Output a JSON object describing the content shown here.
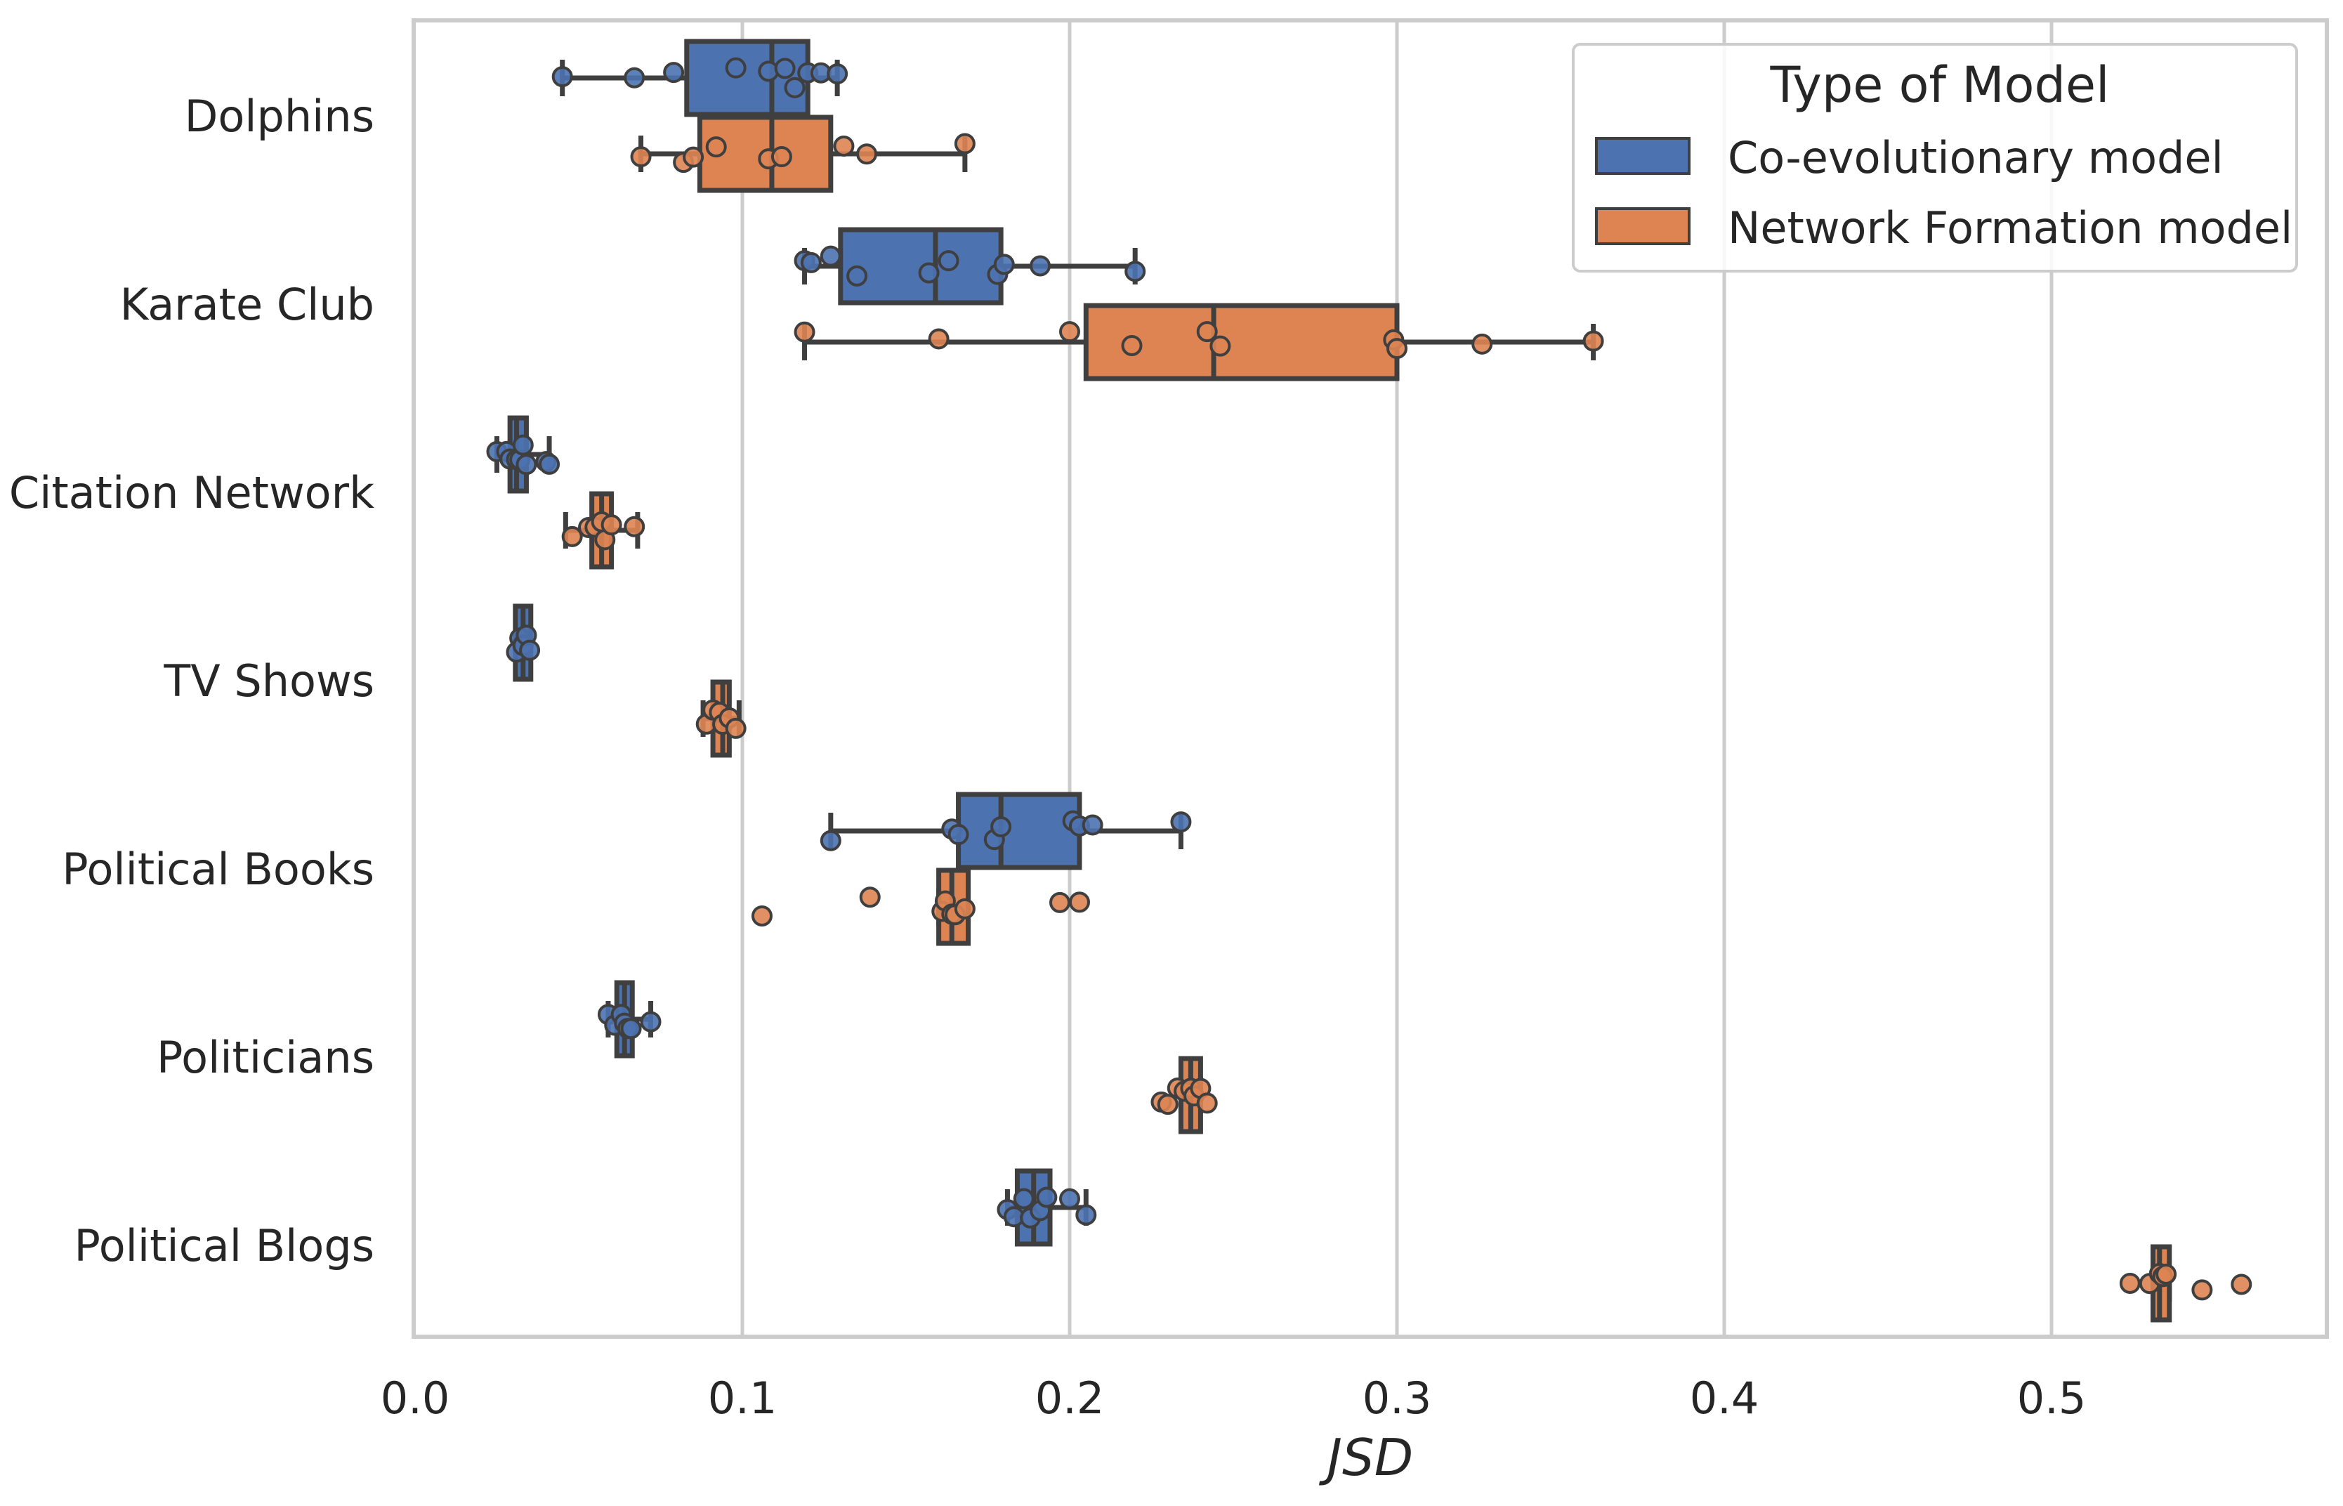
{
  "chart_data": {
    "type": "boxplot",
    "orientation": "horizontal",
    "title": "",
    "xlabel": "JSD",
    "ylabel": "",
    "xlim": [
      0.0,
      0.58
    ],
    "xticks": [
      0.0,
      0.1,
      0.2,
      0.3,
      0.4,
      0.5
    ],
    "xtick_labels": [
      "0.0",
      "0.1",
      "0.2",
      "0.3",
      "0.4",
      "0.5"
    ],
    "grid": "vertical",
    "categories": [
      "Dolphins",
      "Karate Club",
      "Citation Network",
      "TV Shows",
      "Political Books",
      "Politicians",
      "Political Blogs"
    ],
    "legend": {
      "title": "Type of Model",
      "placement": "top-right",
      "entries": [
        "Co-evolutionary model",
        "Network Formation model"
      ]
    },
    "series": [
      {
        "name": "Co-evolutionary model",
        "color": "#4c72b0",
        "boxes": [
          {
            "category": "Dolphins",
            "whislo": 0.045,
            "q1": 0.083,
            "med": 0.109,
            "q3": 0.12,
            "whishi": 0.129,
            "points": [
              0.045,
              0.067,
              0.079,
              0.098,
              0.108,
              0.113,
              0.116,
              0.12,
              0.124,
              0.129
            ]
          },
          {
            "category": "Karate Club",
            "whislo": 0.119,
            "q1": 0.13,
            "med": 0.159,
            "q3": 0.179,
            "whishi": 0.22,
            "points": [
              0.119,
              0.121,
              0.127,
              0.135,
              0.157,
              0.163,
              0.178,
              0.18,
              0.191,
              0.22
            ]
          },
          {
            "category": "Citation Network",
            "whislo": 0.025,
            "q1": 0.029,
            "med": 0.031,
            "q3": 0.034,
            "whishi": 0.041,
            "points": [
              0.025,
              0.028,
              0.029,
              0.031,
              0.032,
              0.033,
              0.034,
              0.04,
              0.041
            ]
          },
          {
            "category": "TV Shows",
            "whislo": 0.031,
            "q1": 0.032,
            "med": 0.033,
            "q3": 0.034,
            "whishi": 0.035,
            "points": [
              0.031,
              0.032,
              0.033,
              0.033,
              0.034,
              0.035
            ]
          },
          {
            "category": "Political Books",
            "whislo": 0.127,
            "q1": 0.166,
            "med": 0.179,
            "q3": 0.203,
            "whishi": 0.234,
            "points": [
              0.127,
              0.164,
              0.166,
              0.177,
              0.179,
              0.201,
              0.203,
              0.207,
              0.234
            ]
          },
          {
            "category": "Politicians",
            "whislo": 0.059,
            "q1": 0.062,
            "med": 0.064,
            "q3": 0.066,
            "whishi": 0.072,
            "points": [
              0.059,
              0.061,
              0.063,
              0.064,
              0.065,
              0.066,
              0.072
            ]
          },
          {
            "category": "Political Blogs",
            "whislo": 0.181,
            "q1": 0.184,
            "med": 0.189,
            "q3": 0.194,
            "whishi": 0.205,
            "points": [
              0.181,
              0.183,
              0.186,
              0.188,
              0.191,
              0.193,
              0.2,
              0.205
            ]
          }
        ]
      },
      {
        "name": "Network Formation model",
        "color": "#dd8452",
        "boxes": [
          {
            "category": "Dolphins",
            "whislo": 0.069,
            "q1": 0.087,
            "med": 0.109,
            "q3": 0.127,
            "whishi": 0.168,
            "points": [
              0.069,
              0.082,
              0.085,
              0.092,
              0.108,
              0.112,
              0.131,
              0.138,
              0.168
            ]
          },
          {
            "category": "Karate Club",
            "whislo": 0.119,
            "q1": 0.205,
            "med": 0.244,
            "q3": 0.3,
            "whishi": 0.36,
            "points": [
              0.119,
              0.16,
              0.2,
              0.219,
              0.242,
              0.246,
              0.299,
              0.3,
              0.326,
              0.36
            ]
          },
          {
            "category": "Citation Network",
            "whislo": 0.046,
            "q1": 0.054,
            "med": 0.057,
            "q3": 0.06,
            "whishi": 0.068,
            "points": [
              0.048,
              0.053,
              0.055,
              0.057,
              0.058,
              0.06,
              0.067
            ]
          },
          {
            "category": "TV Shows",
            "whislo": 0.088,
            "q1": 0.091,
            "med": 0.094,
            "q3": 0.096,
            "whishi": 0.099,
            "points": [
              0.089,
              0.091,
              0.093,
              0.094,
              0.096,
              0.098
            ]
          },
          {
            "category": "Political Books",
            "whislo": 0.16,
            "q1": 0.16,
            "med": 0.164,
            "q3": 0.169,
            "whishi": 0.169,
            "points": [
              0.106,
              0.139,
              0.161,
              0.162,
              0.164,
              0.165,
              0.168,
              0.197,
              0.203
            ]
          },
          {
            "category": "Politicians",
            "whislo": 0.234,
            "q1": 0.234,
            "med": 0.237,
            "q3": 0.24,
            "whishi": 0.24,
            "points": [
              0.228,
              0.23,
              0.233,
              0.235,
              0.237,
              0.238,
              0.24,
              0.242
            ]
          },
          {
            "category": "Political Blogs",
            "whislo": 0.531,
            "q1": 0.531,
            "med": 0.533,
            "q3": 0.536,
            "whishi": 0.536,
            "points": [
              0.524,
              0.53,
              0.533,
              0.534,
              0.535,
              0.546,
              0.558
            ]
          }
        ]
      }
    ]
  }
}
